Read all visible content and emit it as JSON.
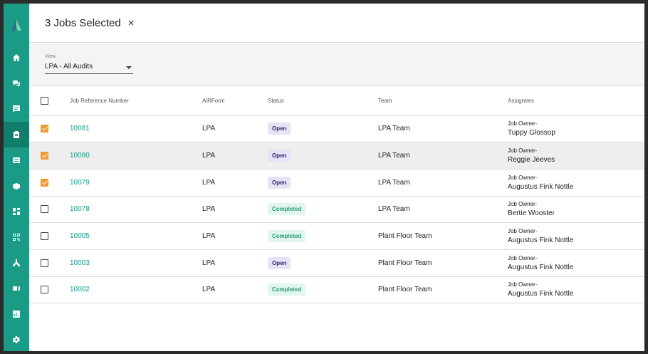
{
  "header": {
    "title": "3 Jobs Selected",
    "close_glyph": "×"
  },
  "view": {
    "label": "View",
    "selected": "LPA - All Audits"
  },
  "columns": [
    "Job Reference Number",
    "AiRForm",
    "Status",
    "Team",
    "Assignees"
  ],
  "rows": [
    {
      "checked": true,
      "ref": "10081",
      "form": "LPA",
      "status": "Open",
      "team": "LPA Team",
      "role": "Job Owner-",
      "assignee": "Tuppy Glossop"
    },
    {
      "checked": true,
      "ref": "10080",
      "form": "LPA",
      "status": "Open",
      "team": "LPA Team",
      "role": "Job Owner-",
      "assignee": "Reggie Jeeves"
    },
    {
      "checked": true,
      "ref": "10079",
      "form": "LPA",
      "status": "Open",
      "team": "LPA Team",
      "role": "Job Owner-",
      "assignee": "Augustus Fink Nottle"
    },
    {
      "checked": false,
      "ref": "10078",
      "form": "LPA",
      "status": "Completed",
      "team": "LPA Team",
      "role": "Job Owner-",
      "assignee": "Bertie Wooster"
    },
    {
      "checked": false,
      "ref": "10005",
      "form": "LPA",
      "status": "Completed",
      "team": "Plant Floor Team",
      "role": "Job Owner-",
      "assignee": "Augustus Fink Nottle"
    },
    {
      "checked": false,
      "ref": "10003",
      "form": "LPA",
      "status": "Open",
      "team": "Plant Floor Team",
      "role": "Job Owner-",
      "assignee": "Augustus Fink Nottle"
    },
    {
      "checked": false,
      "ref": "10002",
      "form": "LPA",
      "status": "Completed",
      "team": "Plant Floor Team",
      "role": "Job Owner-",
      "assignee": "Augustus Fink Nottle"
    }
  ],
  "sidebar_icons": [
    "home-icon",
    "chat-icon",
    "message-icon",
    "clipboard-icon",
    "list-icon",
    "box-icon",
    "dashboard-icon",
    "qr-icon",
    "network-icon",
    "id-card-icon",
    "chart-icon",
    "settings-icon"
  ],
  "colors": {
    "accent": "#1b9a86",
    "checkbox": "#f29a2e",
    "open_badge": "#e6e3f7",
    "completed_badge": "#e2f6ef"
  }
}
